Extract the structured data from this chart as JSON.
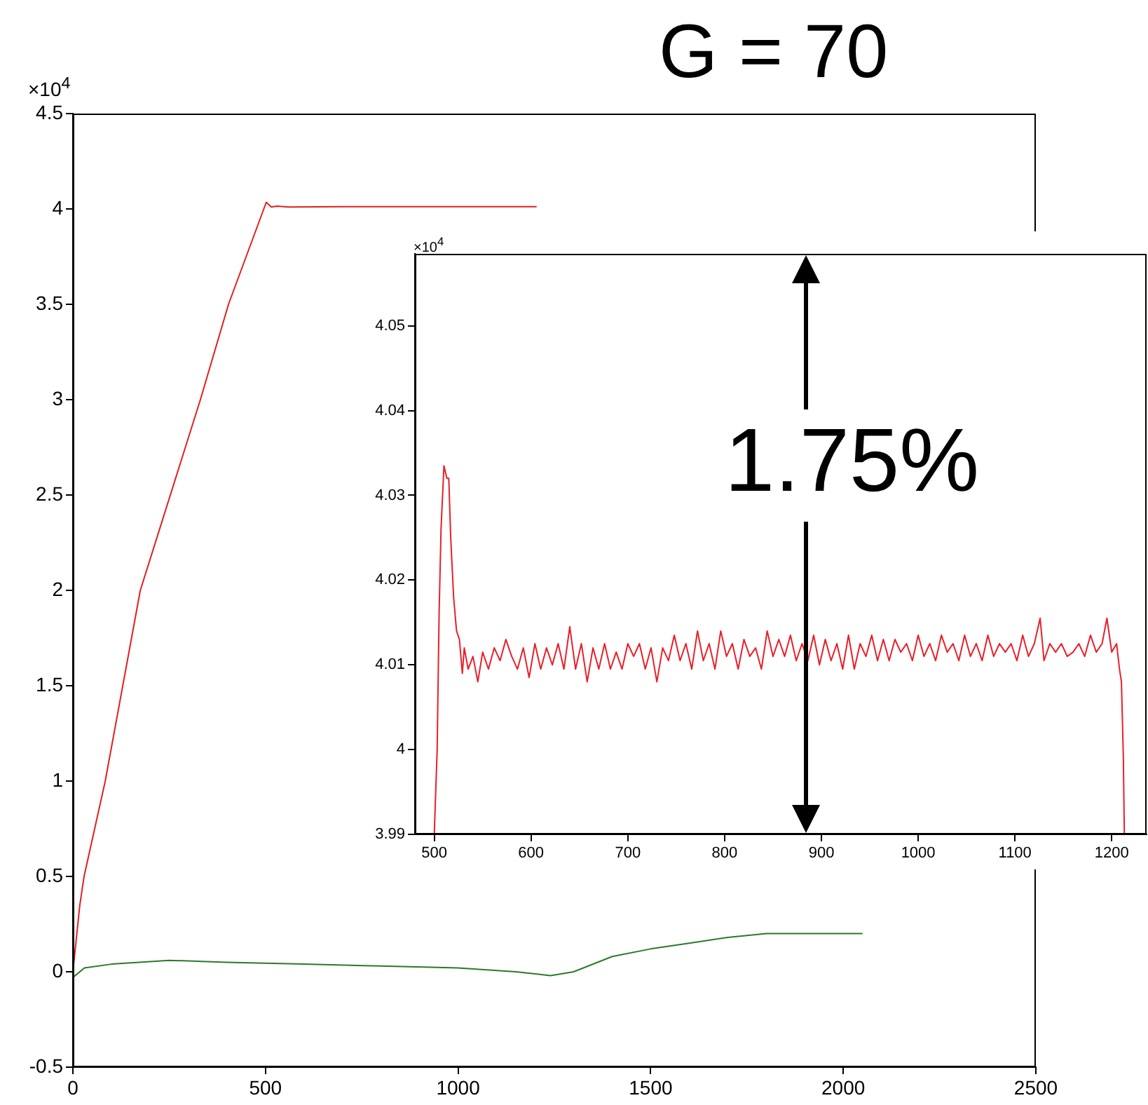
{
  "chart_data": [
    {
      "type": "line",
      "title": "G = 70",
      "xlim": [
        0,
        2500
      ],
      "xticks": [
        0,
        500,
        1000,
        1500,
        2000,
        2500
      ],
      "ylim": [
        -0.5,
        4.5
      ],
      "yticks": [
        -0.5,
        0,
        0.5,
        1,
        1.5,
        2,
        2.5,
        3,
        3.5,
        4,
        4.5
      ],
      "grid": false,
      "legend": false,
      "marker": "none",
      "annotations": [
        "×10$^{4}$"
      ],
      "series": [
        {
          "color": "#e02020",
          "x": [
            0,
            18,
            29,
            84,
            175,
            331,
            404,
            502,
            515,
            530,
            560,
            700,
            900,
            1100,
            1204
          ],
          "values": [
            0,
            0.35,
            0.5,
            1,
            2,
            3,
            3.5,
            4.035,
            4.01,
            4.015,
            4.01,
            4.012,
            4.012,
            4.012,
            4.012
          ]
        },
        {
          "color": "#2a7a2a",
          "x": [
            0,
            30,
            100,
            250,
            400,
            600,
            800,
            1000,
            1150,
            1240,
            1300,
            1400,
            1500,
            1600,
            1700,
            1800,
            2050
          ],
          "values": [
            -0.03,
            0.02,
            0.04,
            0.06,
            0.05,
            0.04,
            0.03,
            0.02,
            0,
            -0.02,
            0,
            0.08,
            0.12,
            0.15,
            0.18,
            0.2,
            0.2
          ]
        }
      ]
    },
    {
      "type": "line",
      "xlim": [
        480,
        1236
      ],
      "xticks": [
        500,
        600,
        700,
        800,
        900,
        1000,
        1100,
        1200
      ],
      "ylim": [
        3.99,
        4.0585
      ],
      "yticks": [
        3.99,
        4,
        4.01,
        4.02,
        4.03,
        4.04,
        4.05
      ],
      "grid": false,
      "legend": false,
      "marker": "none",
      "annotations": [
        "×10$^{4}$",
        "1.75%"
      ],
      "series": [
        {
          "color": "#e8202a",
          "x": [
            500,
            503,
            505,
            507,
            510,
            513,
            515,
            517,
            520,
            523,
            526,
            529,
            531,
            535,
            540,
            545,
            550,
            556,
            562,
            568,
            574,
            580,
            586,
            592,
            598,
            604,
            610,
            616,
            622,
            628,
            634,
            640,
            646,
            652,
            658,
            664,
            670,
            676,
            682,
            688,
            694,
            700,
            706,
            712,
            718,
            724,
            730,
            736,
            742,
            748,
            754,
            760,
            766,
            772,
            778,
            784,
            790,
            796,
            802,
            808,
            814,
            820,
            826,
            832,
            838,
            844,
            850,
            856,
            862,
            868,
            874,
            880,
            886,
            892,
            898,
            904,
            910,
            916,
            922,
            928,
            934,
            940,
            946,
            952,
            958,
            964,
            970,
            976,
            982,
            988,
            994,
            1000,
            1006,
            1012,
            1018,
            1024,
            1030,
            1036,
            1042,
            1048,
            1054,
            1060,
            1066,
            1072,
            1078,
            1084,
            1090,
            1096,
            1102,
            1108,
            1114,
            1120,
            1126,
            1130,
            1136,
            1142,
            1148,
            1154,
            1160,
            1166,
            1172,
            1178,
            1184,
            1190,
            1195,
            1200,
            1205,
            1208,
            1210,
            1212,
            1213
          ],
          "values": [
            3.99,
            4.0,
            4.016,
            4.026,
            4.0335,
            4.032,
            4.032,
            4.025,
            4.018,
            4.014,
            4.013,
            4.009,
            4.012,
            4.0095,
            4.011,
            4.008,
            4.0115,
            4.0095,
            4.012,
            4.0105,
            4.013,
            4.011,
            4.0095,
            4.012,
            4.0085,
            4.0125,
            4.0095,
            4.012,
            4.01,
            4.0125,
            4.0095,
            4.0145,
            4.0095,
            4.0125,
            4.008,
            4.012,
            4.0095,
            4.0125,
            4.0095,
            4.0115,
            4.0095,
            4.0125,
            4.011,
            4.0125,
            4.0095,
            4.012,
            4.008,
            4.012,
            4.0105,
            4.0135,
            4.0105,
            4.0125,
            4.0095,
            4.014,
            4.0105,
            4.0125,
            4.0095,
            4.014,
            4.011,
            4.0125,
            4.0095,
            4.013,
            4.011,
            4.012,
            4.0095,
            4.014,
            4.011,
            4.013,
            4.011,
            4.0135,
            4.0105,
            4.0125,
            4.0105,
            4.0135,
            4.01,
            4.013,
            4.0105,
            4.0125,
            4.0095,
            4.0135,
            4.0095,
            4.0125,
            4.011,
            4.0135,
            4.0105,
            4.013,
            4.0105,
            4.013,
            4.0115,
            4.0125,
            4.0105,
            4.0135,
            4.011,
            4.0125,
            4.0105,
            4.0135,
            4.0115,
            4.0125,
            4.0105,
            4.0135,
            4.011,
            4.0125,
            4.0105,
            4.0135,
            4.011,
            4.0125,
            4.0115,
            4.0125,
            4.0105,
            4.0135,
            4.011,
            4.0125,
            4.0155,
            4.0105,
            4.0125,
            4.0115,
            4.0125,
            4.011,
            4.0115,
            4.0125,
            4.011,
            4.0135,
            4.0115,
            4.0125,
            4.0155,
            4.0115,
            4.0125,
            4.0095,
            4.008,
            3.999,
            3.99
          ]
        }
      ]
    }
  ]
}
